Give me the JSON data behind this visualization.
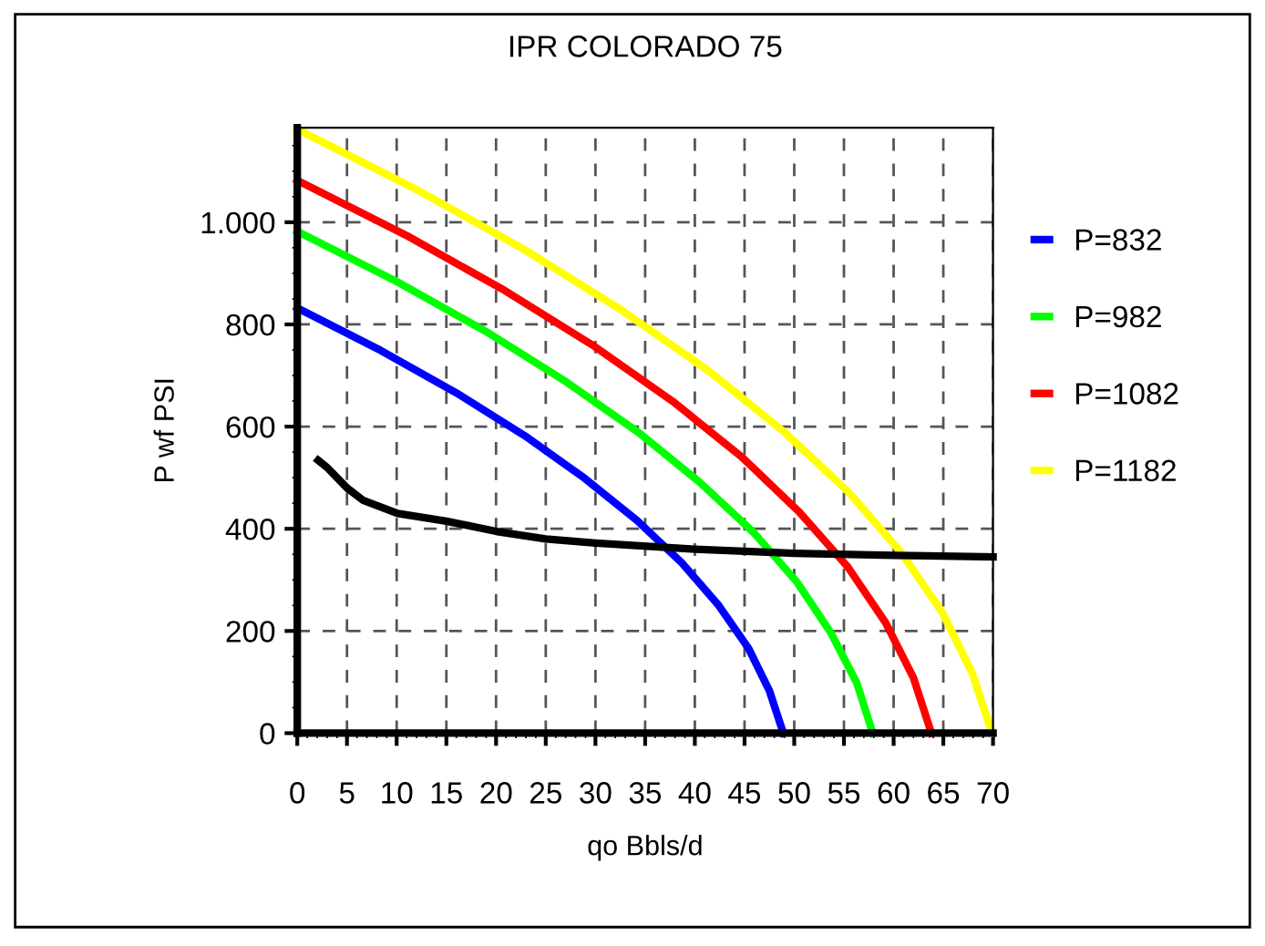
{
  "chart_data": {
    "type": "line",
    "title": "IPR COLORADO 75",
    "xlabel": "qo Bbls/d",
    "ylabel": "P wf PSI",
    "xlim": [
      0,
      70
    ],
    "xticks": [
      0,
      5,
      10,
      15,
      20,
      25,
      30,
      35,
      40,
      45,
      50,
      55,
      60,
      65,
      70
    ],
    "ylim": [
      0,
      1185
    ],
    "yticks": [
      0,
      200,
      400,
      600,
      800,
      {
        "value": 1000,
        "label": "1.000"
      }
    ],
    "grid": true,
    "legend": "right",
    "marker": "none",
    "line_style": "solid",
    "series": [
      {
        "name": "P=832",
        "color": "#0000ff",
        "x": [
          0,
          8.4,
          16.0,
          22.9,
          28.9,
          34.2,
          38.7,
          42.4,
          45.4,
          47.5,
          48.9
        ],
        "values": [
          832,
          749,
          666,
          582,
          499,
          416,
          333,
          250,
          166,
          83,
          0
        ]
      },
      {
        "name": "P=982",
        "color": "#00ff00",
        "x": [
          0,
          10.0,
          19.0,
          27.1,
          34.3,
          40.5,
          45.9,
          50.3,
          53.7,
          56.3,
          57.9
        ],
        "values": [
          982,
          884,
          786,
          687,
          589,
          491,
          393,
          295,
          196,
          98,
          0
        ]
      },
      {
        "name": "P=1082",
        "color": "#ff0000",
        "x": [
          0,
          11.0,
          20.9,
          29.9,
          37.8,
          44.7,
          50.5,
          55.4,
          59.2,
          62.0,
          63.8
        ],
        "values": [
          1082,
          974,
          866,
          757,
          649,
          541,
          433,
          325,
          216,
          108,
          0
        ]
      },
      {
        "name": "P=1182",
        "color": "#ffff00",
        "x": [
          0,
          12.0,
          22.9,
          32.7,
          41.4,
          48.9,
          55.4,
          60.7,
          64.9,
          67.9,
          69.9
        ],
        "values": [
          1182,
          1064,
          946,
          827,
          709,
          591,
          473,
          355,
          236,
          118,
          0
        ]
      },
      {
        "color": "#000000",
        "x": [
          2.1,
          3,
          5,
          6.6,
          10.1,
          15,
          20,
          25,
          30,
          40,
          50,
          60,
          70
        ],
        "values": [
          534,
          520,
          480,
          456,
          430,
          415,
          395,
          380,
          372,
          360,
          352,
          348,
          345
        ]
      }
    ]
  }
}
